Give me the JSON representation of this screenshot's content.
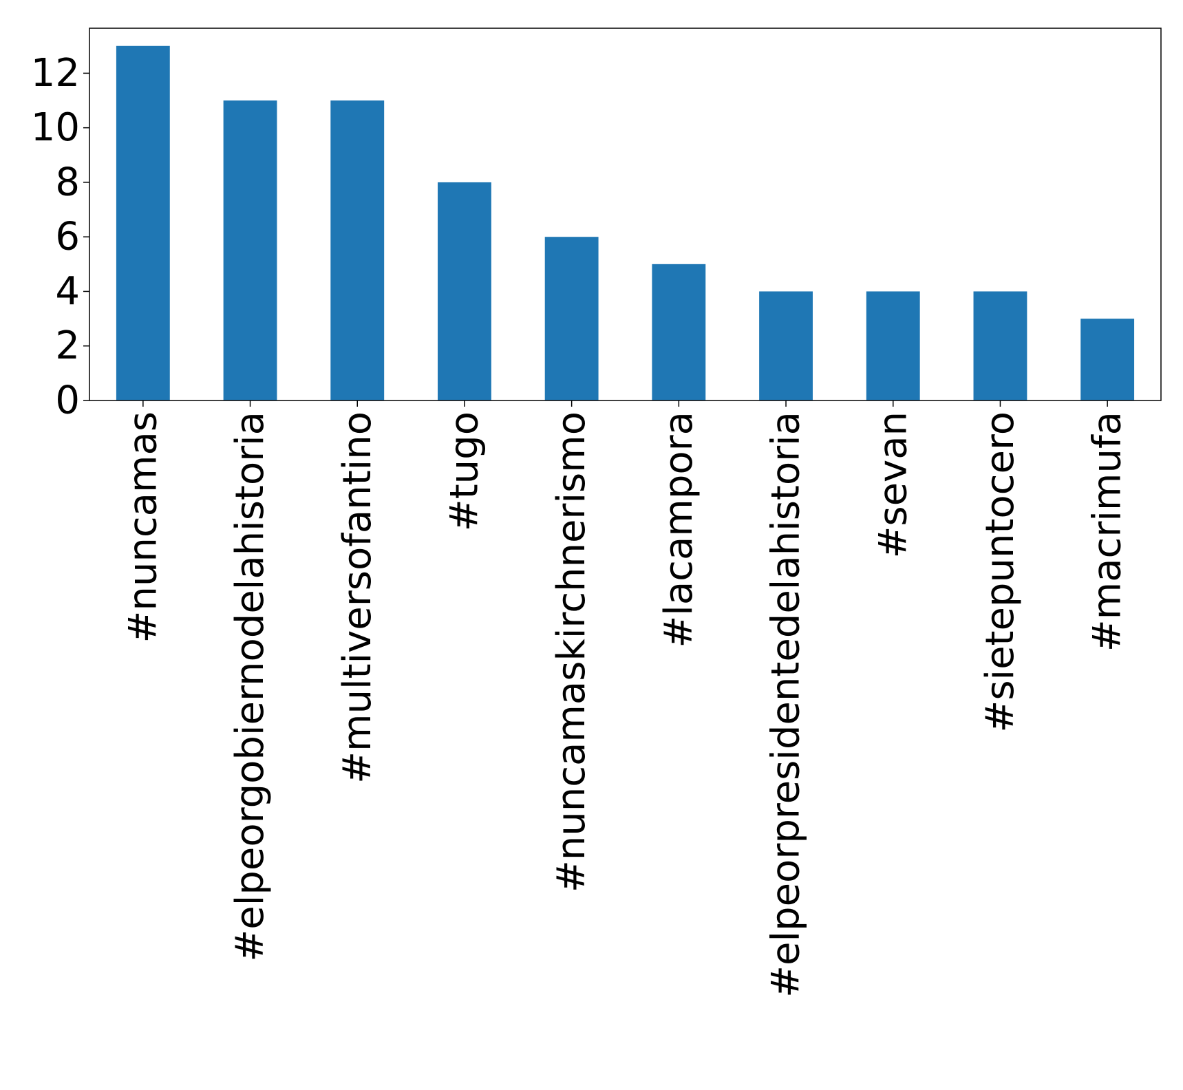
{
  "chart_data": {
    "type": "bar",
    "categories": [
      "#nuncamas",
      "#elpeorgobiernodelahistoria",
      "#multiversofantino",
      "#tugo",
      "#nuncamaskirchnerismo",
      "#lacampora",
      "#elpeorpresidentedelahistoria",
      "#sevan",
      "#sietepuntocero",
      "#macrimufa"
    ],
    "values": [
      13,
      11,
      11,
      8,
      6,
      5,
      4,
      4,
      4,
      3
    ],
    "title": "",
    "xlabel": "",
    "ylabel": "",
    "ylim": [
      0,
      13.65
    ],
    "yticks": [
      0,
      2,
      4,
      6,
      8,
      10,
      12
    ],
    "ytick_labels": [
      "0",
      "2",
      "4",
      "6",
      "8",
      "10",
      "12"
    ],
    "grid": false,
    "legend": "none",
    "bar_color": "#1f77b4",
    "x_label_rotation": "vertical"
  }
}
